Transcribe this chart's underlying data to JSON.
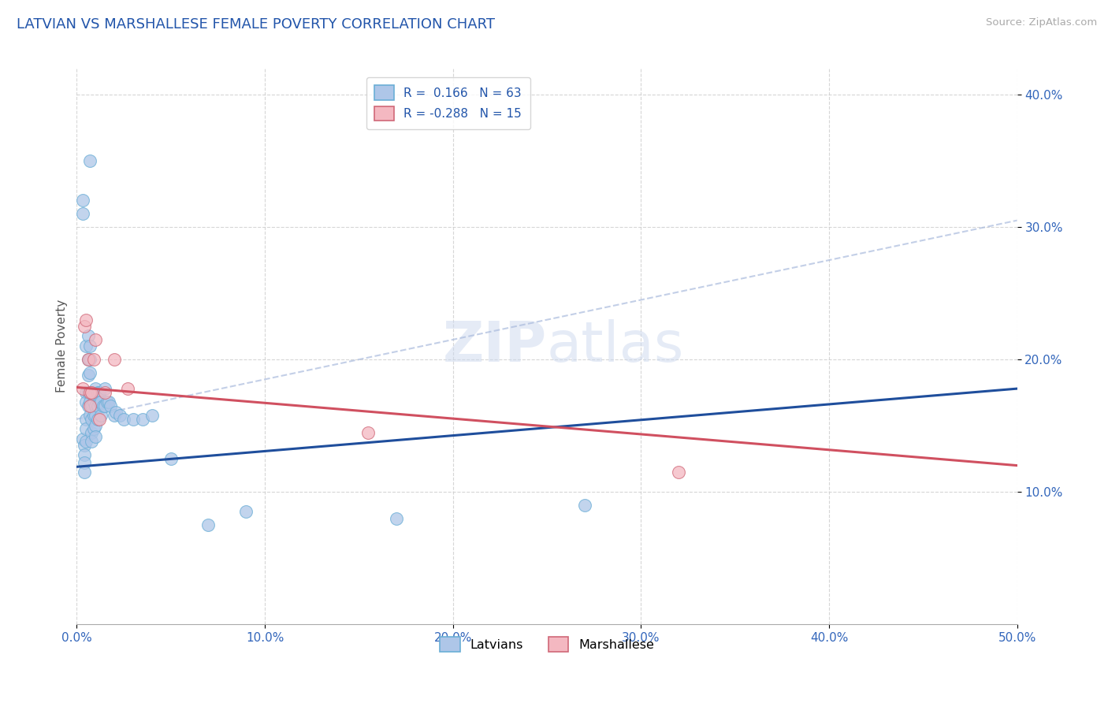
{
  "title": "LATVIAN VS MARSHALLESE FEMALE POVERTY CORRELATION CHART",
  "source": "Source: ZipAtlas.com",
  "ylabel": "Female Poverty",
  "xlim": [
    0.0,
    0.5
  ],
  "ylim": [
    0.0,
    0.42
  ],
  "xticks": [
    0.0,
    0.1,
    0.2,
    0.3,
    0.4,
    0.5
  ],
  "xtick_labels": [
    "0.0%",
    "10.0%",
    "20.0%",
    "30.0%",
    "40.0%",
    "50.0%"
  ],
  "yticks": [
    0.1,
    0.2,
    0.3,
    0.4
  ],
  "ytick_labels": [
    "10.0%",
    "20.0%",
    "30.0%",
    "40.0%"
  ],
  "grid_color": "#cccccc",
  "background_color": "#ffffff",
  "latvian_color": "#aec6e8",
  "latvian_edge": "#6aaed6",
  "marshallese_color": "#f4b8c1",
  "marshallese_edge": "#d06878",
  "latvian_R": 0.166,
  "latvian_N": 63,
  "marshallese_R": -0.288,
  "marshallese_N": 15,
  "latvian_line_color": "#1f4e9c",
  "marshallese_line_color": "#d05060",
  "latvian_line_x": [
    0.0,
    0.5
  ],
  "latvian_line_y": [
    0.119,
    0.178
  ],
  "marshallese_line_x": [
    0.0,
    0.5
  ],
  "marshallese_line_y": [
    0.179,
    0.12
  ],
  "dashed_line_x": [
    0.0,
    0.5
  ],
  "dashed_line_y": [
    0.155,
    0.305
  ],
  "latvian_x": [
    0.007,
    0.003,
    0.003,
    0.003,
    0.004,
    0.004,
    0.004,
    0.004,
    0.005,
    0.005,
    0.005,
    0.005,
    0.005,
    0.005,
    0.006,
    0.006,
    0.006,
    0.006,
    0.006,
    0.007,
    0.007,
    0.007,
    0.007,
    0.007,
    0.007,
    0.008,
    0.008,
    0.008,
    0.008,
    0.008,
    0.009,
    0.009,
    0.009,
    0.01,
    0.01,
    0.01,
    0.01,
    0.01,
    0.011,
    0.011,
    0.011,
    0.012,
    0.012,
    0.013,
    0.013,
    0.014,
    0.015,
    0.015,
    0.016,
    0.017,
    0.018,
    0.02,
    0.021,
    0.023,
    0.025,
    0.03,
    0.035,
    0.04,
    0.05,
    0.07,
    0.09,
    0.17,
    0.27
  ],
  "latvian_y": [
    0.35,
    0.32,
    0.31,
    0.14,
    0.135,
    0.128,
    0.122,
    0.115,
    0.21,
    0.175,
    0.168,
    0.155,
    0.148,
    0.138,
    0.218,
    0.2,
    0.188,
    0.175,
    0.165,
    0.21,
    0.2,
    0.19,
    0.175,
    0.168,
    0.158,
    0.175,
    0.165,
    0.155,
    0.145,
    0.138,
    0.168,
    0.158,
    0.148,
    0.178,
    0.165,
    0.158,
    0.15,
    0.142,
    0.175,
    0.165,
    0.155,
    0.175,
    0.168,
    0.168,
    0.158,
    0.165,
    0.178,
    0.165,
    0.168,
    0.168,
    0.165,
    0.158,
    0.16,
    0.158,
    0.155,
    0.155,
    0.155,
    0.158,
    0.125,
    0.075,
    0.085,
    0.08,
    0.09
  ],
  "marshallese_x": [
    0.003,
    0.004,
    0.005,
    0.006,
    0.007,
    0.007,
    0.008,
    0.009,
    0.01,
    0.012,
    0.015,
    0.02,
    0.027,
    0.155,
    0.32
  ],
  "marshallese_y": [
    0.178,
    0.225,
    0.23,
    0.2,
    0.175,
    0.165,
    0.175,
    0.2,
    0.215,
    0.155,
    0.175,
    0.2,
    0.178,
    0.145,
    0.115
  ]
}
